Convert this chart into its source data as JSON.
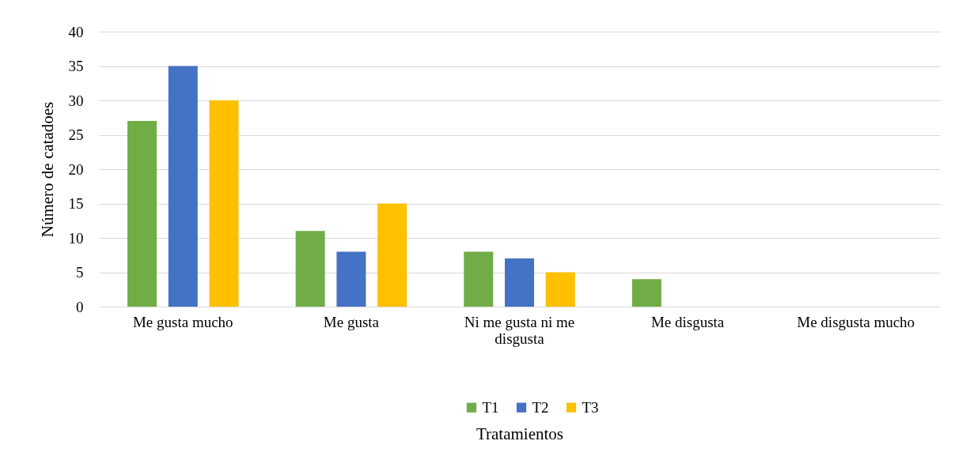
{
  "chart_data": {
    "type": "bar",
    "ylabel": "Número de catadoes",
    "xlabel": "Tratamientos",
    "categories": [
      "Me gusta mucho",
      "Me gusta",
      "Ni me gusta ni me disgusta",
      "Me disgusta",
      "Me disgusta mucho"
    ],
    "series": [
      {
        "name": "T1",
        "color": "#70ad47",
        "values": [
          27,
          11,
          8,
          4,
          0
        ]
      },
      {
        "name": "T2",
        "color": "#4472c4",
        "values": [
          35,
          8,
          7,
          0,
          0
        ]
      },
      {
        "name": "T3",
        "color": "#ffc000",
        "values": [
          30,
          15,
          5,
          0,
          0
        ]
      }
    ],
    "ylim": [
      0,
      40
    ],
    "yticks": [
      0,
      5,
      10,
      15,
      20,
      25,
      30,
      35,
      40
    ],
    "grid": "y",
    "legend": "bottom"
  }
}
